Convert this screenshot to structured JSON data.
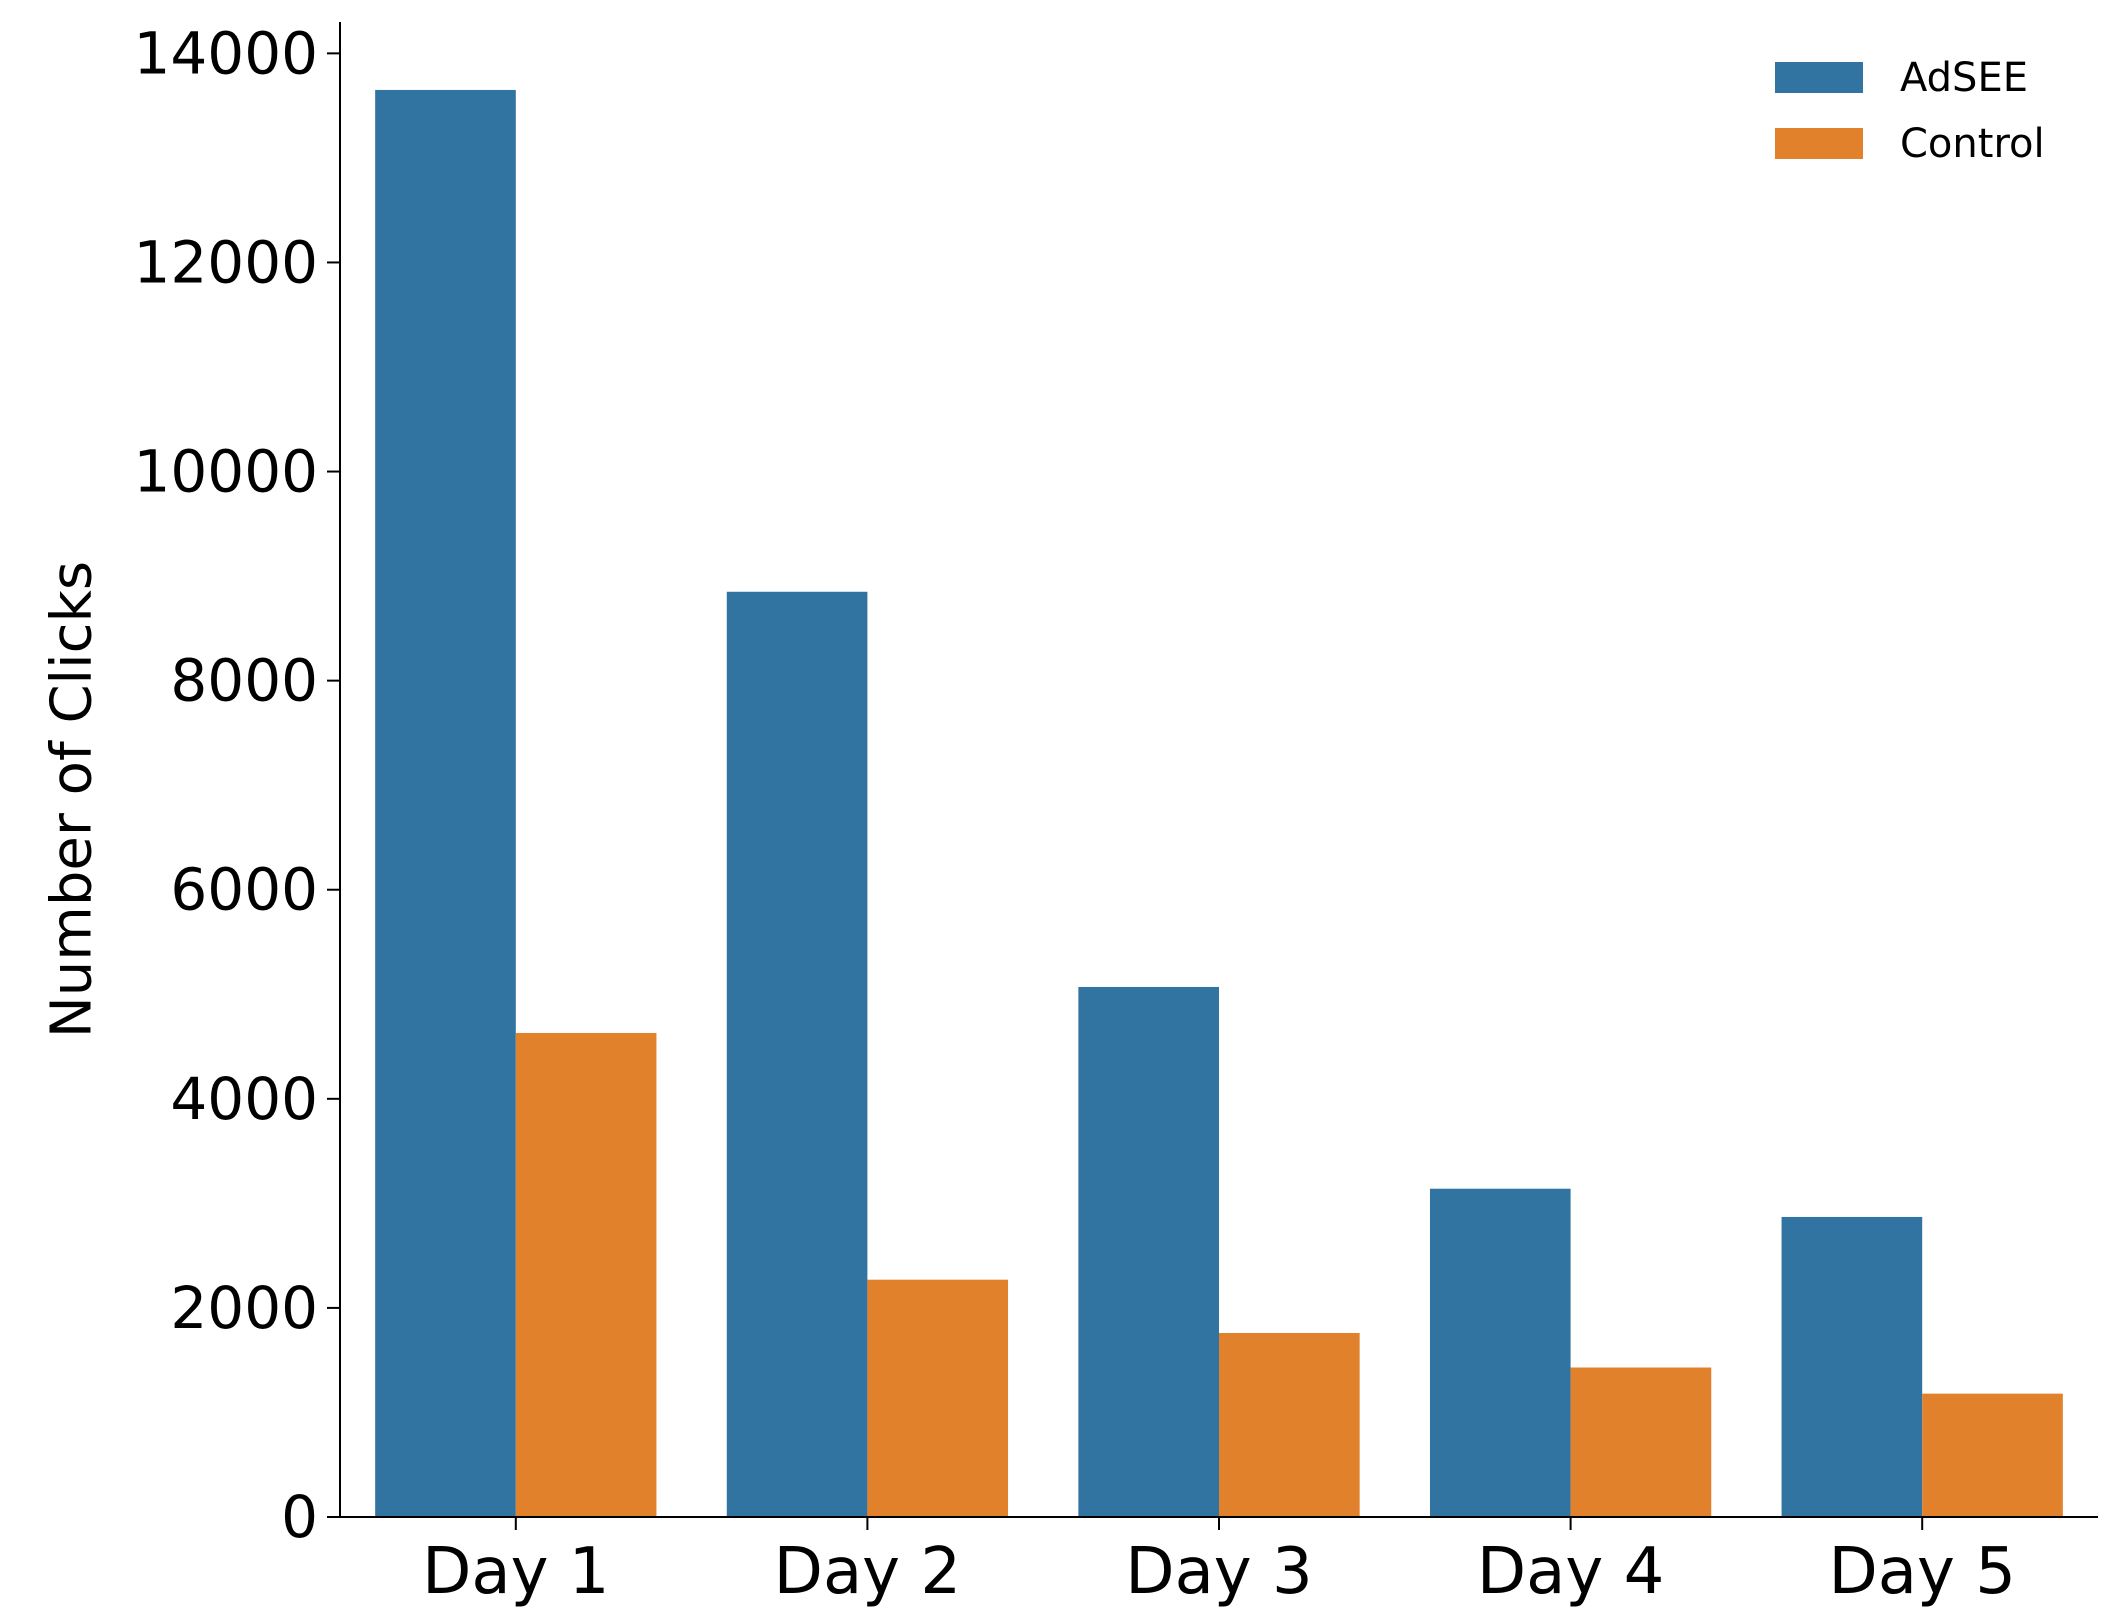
{
  "chart_data": {
    "type": "bar",
    "title": "",
    "xlabel": "",
    "ylabel": "Number of Clicks",
    "categories": [
      "Day 1",
      "Day 2",
      "Day 3",
      "Day 4",
      "Day 5"
    ],
    "series": [
      {
        "name": "AdSEE",
        "color": "#3274a1",
        "values": [
          13650,
          8850,
          5070,
          3140,
          2870
        ]
      },
      {
        "name": "Control",
        "color": "#e1812c",
        "values": [
          4630,
          2270,
          1760,
          1430,
          1180
        ]
      }
    ],
    "ylim": [
      0,
      14300
    ],
    "yticks": [
      0,
      2000,
      4000,
      6000,
      8000,
      10000,
      12000,
      14000
    ],
    "grid": false,
    "legend": {
      "position": "top-right"
    }
  }
}
